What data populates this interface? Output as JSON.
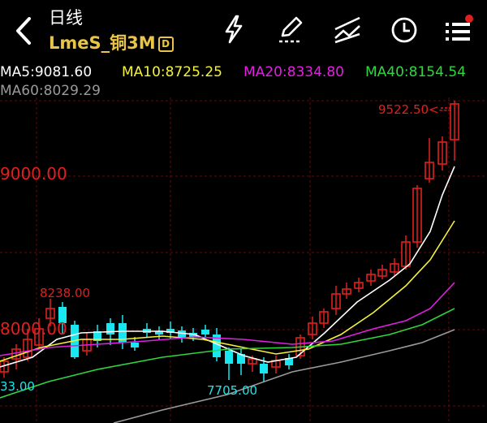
{
  "header": {
    "period": "日线",
    "symbol": "LmeS_铜3M",
    "symbol_badge": "D",
    "icons": [
      "lightning-icon",
      "pencil-icon",
      "drawing-lines-icon",
      "clock-icon",
      "menu-list-icon"
    ]
  },
  "ma": {
    "ma5": "MA5:9081.60",
    "ma10": "MA10:8725.25",
    "ma20": "MA20:8334.80",
    "ma40": "MA40:8154.54",
    "ma60": "MA60:8029.29"
  },
  "colors": {
    "background": "#000000",
    "up": "#e0201e",
    "down": "#19e6ee",
    "ma5": "#ffffff",
    "ma10": "#f5f23a",
    "ma20": "#e020e0",
    "ma40": "#2fd640",
    "ma60": "#9a9a9a",
    "symbol": "#e8c547"
  },
  "chart_labels": {
    "price_9000": "9000.00",
    "price_8000": "8000.00",
    "high_label": "8238.00",
    "low_label": "7705.00",
    "left_low_label": "33.00",
    "last_high": "9522.50<---"
  }
}
